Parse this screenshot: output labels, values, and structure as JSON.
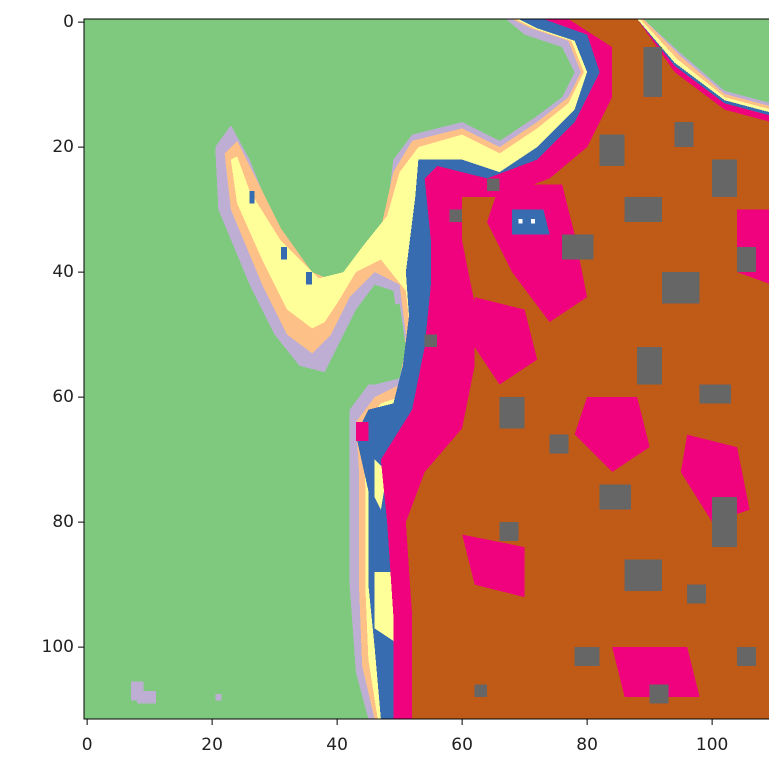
{
  "chart_data": {
    "type": "image",
    "xlim": [
      -0.5,
      109.5
    ],
    "ylim": [
      111.5,
      -0.5
    ],
    "xticks": [
      0,
      20,
      40,
      60,
      80,
      100
    ],
    "yticks": [
      0,
      20,
      40,
      60,
      80,
      100
    ]
  }
}
